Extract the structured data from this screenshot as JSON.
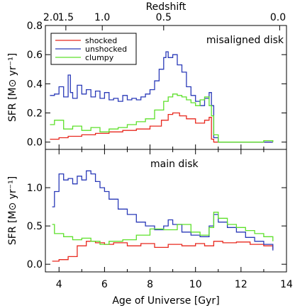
{
  "chart_data": {
    "type": "line",
    "xlabel": "Age of Universe [Gyr]",
    "top_axis_label": "Redshift",
    "xlim": [
      3.4,
      14.0
    ],
    "x_ticks": [
      4,
      6,
      8,
      10,
      12,
      14
    ],
    "redshift_ticks": [
      {
        "label": "2.0",
        "age": 3.3
      },
      {
        "label": "1.5",
        "age": 4.3
      },
      {
        "label": "1.0",
        "age": 5.9
      },
      {
        "label": "0.5",
        "age": 8.6
      },
      {
        "label": "0.0",
        "age": 13.7
      }
    ],
    "legend": {
      "placement": "top-left of top panel"
    },
    "panels": [
      {
        "label": "misaligned disk",
        "ylabel": "SFR [M⊙ yr⁻¹]",
        "ylim": [
          -0.05,
          0.8
        ],
        "y_ticks": [
          0.0,
          0.2,
          0.4,
          0.6,
          0.8
        ],
        "y_tick_labels": [
          "0.0",
          "0.2",
          "0.4",
          "0.6",
          "0.8"
        ],
        "show_legend": true,
        "series": [
          {
            "name": "shocked",
            "color": "#e8281e",
            "x": [
              3.6,
              4.0,
              4.4,
              5.0,
              5.6,
              6.2,
              6.8,
              7.4,
              8.0,
              8.5,
              8.8,
              9.0,
              9.3,
              9.6,
              10.0,
              10.4,
              10.6,
              10.7,
              10.8,
              11.0,
              12.0,
              13.0,
              13.4
            ],
            "y": [
              0.02,
              0.03,
              0.04,
              0.05,
              0.06,
              0.07,
              0.08,
              0.09,
              0.11,
              0.15,
              0.19,
              0.2,
              0.18,
              0.16,
              0.13,
              0.15,
              0.17,
              0.02,
              0.0,
              0.0,
              0.0,
              0.0,
              0.0
            ]
          },
          {
            "name": "unshocked",
            "color": "#2a3ab8",
            "x": [
              3.6,
              3.8,
              4.0,
              4.2,
              4.4,
              4.5,
              4.6,
              4.8,
              5.0,
              5.2,
              5.4,
              5.6,
              5.8,
              6.0,
              6.2,
              6.4,
              6.6,
              6.8,
              7.0,
              7.2,
              7.4,
              7.6,
              7.8,
              8.0,
              8.2,
              8.4,
              8.6,
              8.7,
              8.8,
              9.0,
              9.2,
              9.4,
              9.6,
              9.8,
              10.0,
              10.2,
              10.4,
              10.6,
              10.7,
              10.8,
              11.0,
              12.0,
              13.0,
              13.4
            ],
            "y": [
              0.32,
              0.33,
              0.38,
              0.31,
              0.46,
              0.34,
              0.3,
              0.39,
              0.33,
              0.36,
              0.31,
              0.35,
              0.3,
              0.34,
              0.29,
              0.3,
              0.28,
              0.32,
              0.29,
              0.3,
              0.29,
              0.31,
              0.33,
              0.36,
              0.42,
              0.5,
              0.58,
              0.62,
              0.58,
              0.6,
              0.53,
              0.48,
              0.38,
              0.32,
              0.28,
              0.25,
              0.3,
              0.34,
              0.25,
              0.03,
              0.0,
              0.0,
              0.0,
              0.0
            ]
          },
          {
            "name": "clumpy",
            "color": "#5de02a",
            "x": [
              3.6,
              3.8,
              4.2,
              4.6,
              5.0,
              5.4,
              5.8,
              6.2,
              6.6,
              7.0,
              7.4,
              7.8,
              8.2,
              8.6,
              8.8,
              9.0,
              9.2,
              9.4,
              9.6,
              9.8,
              10.0,
              10.2,
              10.4,
              10.6,
              10.7,
              10.8,
              11.0,
              12.0,
              13.0,
              13.4
            ],
            "y": [
              0.12,
              0.15,
              0.09,
              0.11,
              0.08,
              0.1,
              0.07,
              0.09,
              0.1,
              0.12,
              0.14,
              0.16,
              0.22,
              0.28,
              0.31,
              0.33,
              0.32,
              0.31,
              0.29,
              0.27,
              0.25,
              0.29,
              0.31,
              0.25,
              0.18,
              0.05,
              0.0,
              0.0,
              0.01,
              0.0
            ]
          }
        ]
      },
      {
        "label": "main disk",
        "ylabel": "SFR [M⊙ yr⁻¹]",
        "ylim": [
          -0.1,
          1.5
        ],
        "y_ticks": [
          0.0,
          0.5,
          1.0
        ],
        "y_tick_labels": [
          "0.0",
          "0.5",
          "1.0"
        ],
        "show_legend": false,
        "series": [
          {
            "name": "shocked",
            "color": "#e8281e",
            "x": [
              3.7,
              4.0,
              4.4,
              4.8,
              5.2,
              5.6,
              6.0,
              6.4,
              7.0,
              7.6,
              8.2,
              8.8,
              9.4,
              10.0,
              10.4,
              10.8,
              11.2,
              11.8,
              12.4,
              13.0,
              13.4
            ],
            "y": [
              0.04,
              0.06,
              0.1,
              0.24,
              0.3,
              0.28,
              0.26,
              0.28,
              0.24,
              0.27,
              0.22,
              0.26,
              0.24,
              0.27,
              0.24,
              0.3,
              0.28,
              0.29,
              0.26,
              0.24,
              0.2
            ]
          },
          {
            "name": "unshocked",
            "color": "#2a3ab8",
            "x": [
              3.7,
              3.8,
              4.0,
              4.2,
              4.4,
              4.6,
              4.8,
              5.0,
              5.2,
              5.4,
              5.6,
              5.8,
              6.0,
              6.2,
              6.6,
              7.0,
              7.4,
              7.8,
              8.2,
              8.6,
              8.8,
              9.0,
              9.4,
              9.8,
              10.2,
              10.6,
              10.8,
              11.0,
              11.4,
              11.8,
              12.2,
              12.6,
              13.0,
              13.4
            ],
            "y": [
              0.75,
              0.95,
              1.18,
              1.1,
              1.12,
              1.05,
              1.15,
              1.1,
              1.22,
              1.18,
              1.08,
              1.0,
              0.95,
              0.85,
              0.72,
              0.65,
              0.55,
              0.5,
              0.45,
              0.5,
              0.58,
              0.52,
              0.42,
              0.38,
              0.36,
              0.5,
              0.65,
              0.55,
              0.48,
              0.42,
              0.35,
              0.3,
              0.26,
              0.18
            ]
          },
          {
            "name": "clumpy",
            "color": "#5de02a",
            "x": [
              3.7,
              3.8,
              4.2,
              4.6,
              5.0,
              5.4,
              5.8,
              6.2,
              6.8,
              7.4,
              8.0,
              8.6,
              9.2,
              9.8,
              10.2,
              10.6,
              10.8,
              11.0,
              11.4,
              11.8,
              12.2,
              12.6,
              13.0,
              13.4
            ],
            "y": [
              0.52,
              0.4,
              0.36,
              0.32,
              0.34,
              0.3,
              0.26,
              0.3,
              0.32,
              0.38,
              0.46,
              0.45,
              0.52,
              0.42,
              0.38,
              0.48,
              0.68,
              0.6,
              0.52,
              0.48,
              0.44,
              0.4,
              0.36,
              0.3
            ]
          }
        ]
      }
    ]
  }
}
